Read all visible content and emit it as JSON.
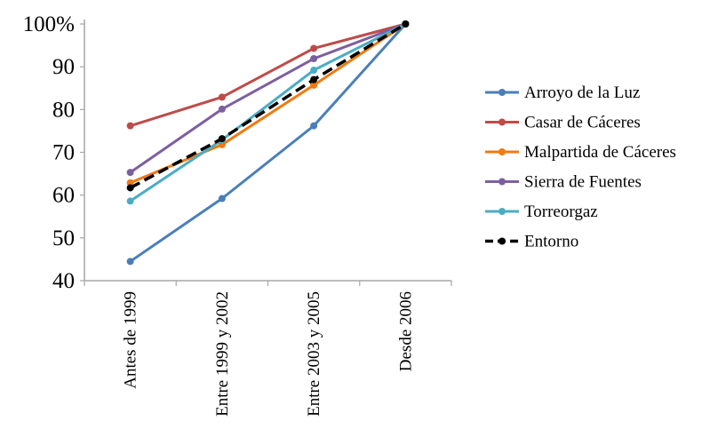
{
  "chart_data": {
    "type": "line",
    "categories": [
      "Antes de 1999",
      "Entre 1999 y 2002",
      "Entre 2003 y 2005",
      "Desde 2006"
    ],
    "yticks": [
      "40",
      "50",
      "60",
      "70",
      "80",
      "90",
      "100%"
    ],
    "ylim": [
      40,
      100
    ],
    "legend_position": "right",
    "grid": false,
    "series": [
      {
        "name": "Arroyo de la Luz",
        "color": "#4a7ebb",
        "dash": false,
        "values": [
          44.5,
          59.2,
          76.2,
          100
        ]
      },
      {
        "name": "Casar de Cáceres",
        "color": "#be4b48",
        "dash": false,
        "values": [
          76.2,
          82.9,
          94.3,
          100
        ]
      },
      {
        "name": "Malpartida de Cáceres",
        "color": "#f07a10",
        "dash": false,
        "values": [
          62.9,
          71.8,
          85.7,
          100
        ]
      },
      {
        "name": "Sierra de Fuentes",
        "color": "#7d5fa0",
        "dash": false,
        "values": [
          65.3,
          80.1,
          91.9,
          100
        ]
      },
      {
        "name": "Torreorgaz",
        "color": "#4bacc6",
        "dash": false,
        "values": [
          58.6,
          72.9,
          89.2,
          100
        ]
      },
      {
        "name": "Entorno",
        "color": "#000000",
        "dash": true,
        "values": [
          61.7,
          73.2,
          87.0,
          100
        ]
      }
    ]
  }
}
